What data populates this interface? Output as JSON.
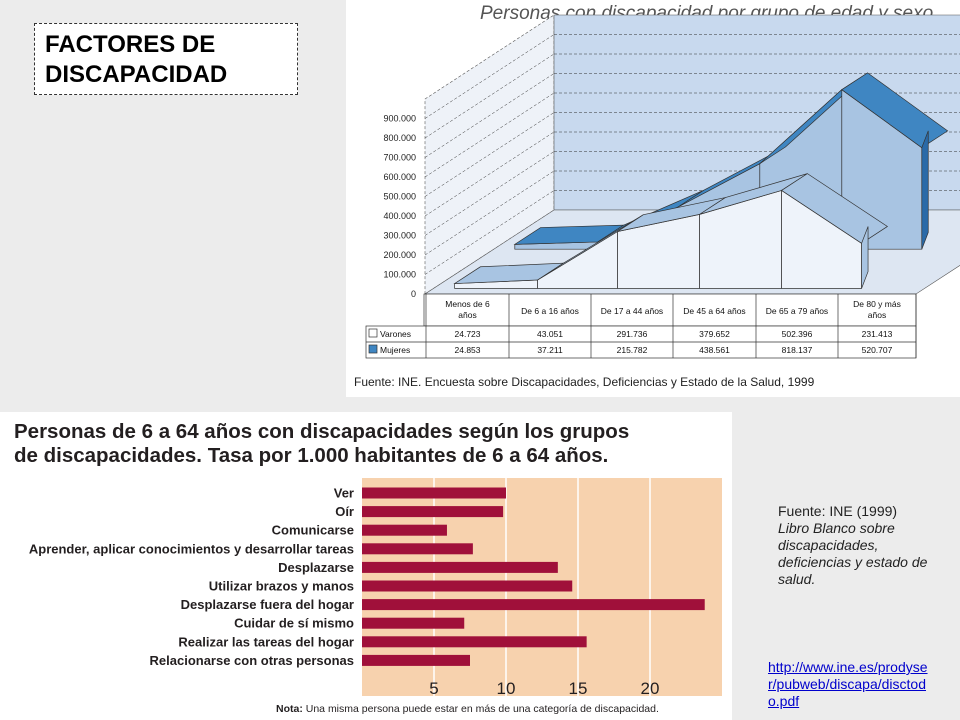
{
  "header": {
    "title_line1": "FACTORES DE",
    "title_line2": "DISCAPACIDAD"
  },
  "chart_data": [
    {
      "type": "area",
      "title": "Personas con discapacidad por grupo de edad y sexo",
      "categories": [
        "Menos de 6 años",
        "De 6 a 16 años",
        "De 17 a 44 años",
        "De 45 a 64 años",
        "De 65 a 79 años",
        "De 80 y más años"
      ],
      "category_lines": [
        [
          "Menos de 6",
          "años"
        ],
        [
          "De 6 a 16 años"
        ],
        [
          "De 17 a 44 años"
        ],
        [
          "De 45 a 64 años"
        ],
        [
          "De 65 a 79 años"
        ],
        [
          "De 80 y más",
          "años"
        ]
      ],
      "series": [
        {
          "name": "Varones",
          "values": [
            24723,
            43051,
            291736,
            379652,
            502396,
            231413
          ],
          "labels": [
            "24.723",
            "43.051",
            "291.736",
            "379.652",
            "502.396",
            "231.413"
          ],
          "color": "#a8c4e2"
        },
        {
          "name": "Mujeres",
          "values": [
            24853,
            37211,
            215782,
            438561,
            818137,
            520707
          ],
          "labels": [
            "24.853",
            "37.211",
            "215.782",
            "438.561",
            "818.137",
            "520.707"
          ],
          "color": "#3f86c2"
        }
      ],
      "yticks": [
        "0",
        "100.000",
        "200.000",
        "300.000",
        "400.000",
        "500.000",
        "600.000",
        "700.000",
        "800.000",
        "900.000"
      ],
      "ylim": [
        0,
        1000000
      ],
      "grid": true,
      "source": "Fuente: INE. Encuesta sobre Discapacidades, Deficiencias y Estado de la Salud, 1999"
    },
    {
      "type": "bar",
      "orientation": "horizontal",
      "title_line1": "Personas de 6 a 64 años con discapacidades según los grupos",
      "title_line2": "de discapacidades. Tasa por 1.000 habitantes de 6 a 64 años.",
      "categories": [
        "Ver",
        "Oír",
        "Comunicarse",
        "Aprender, aplicar conocimientos y desarrollar tareas",
        "Desplazarse",
        "Utilizar brazos y manos",
        "Desplazarse fuera del hogar",
        "Cuidar de sí mismo",
        "Realizar las tareas del hogar",
        "Relacionarse con otras personas"
      ],
      "values": [
        10.0,
        9.8,
        5.9,
        7.7,
        13.6,
        14.6,
        23.8,
        7.1,
        15.6,
        7.5
      ],
      "xticks": [
        "5",
        "10",
        "15",
        "20"
      ],
      "xlim": [
        0,
        25
      ],
      "bar_color": "#a0103a",
      "background_color": "#f7d2ae",
      "note_label": "Nota:",
      "note_text": "Una misma persona puede estar en más de una categoría de discapacidad."
    }
  ],
  "side_note": {
    "line1": "Fuente: INE (1999)",
    "line2": "Libro Blanco sobre discapacidades, deficiencias y estado de salud."
  },
  "link": {
    "text": "http://www.ine.es/prodyser/pubweb/discapa/disctodo.pdf"
  }
}
